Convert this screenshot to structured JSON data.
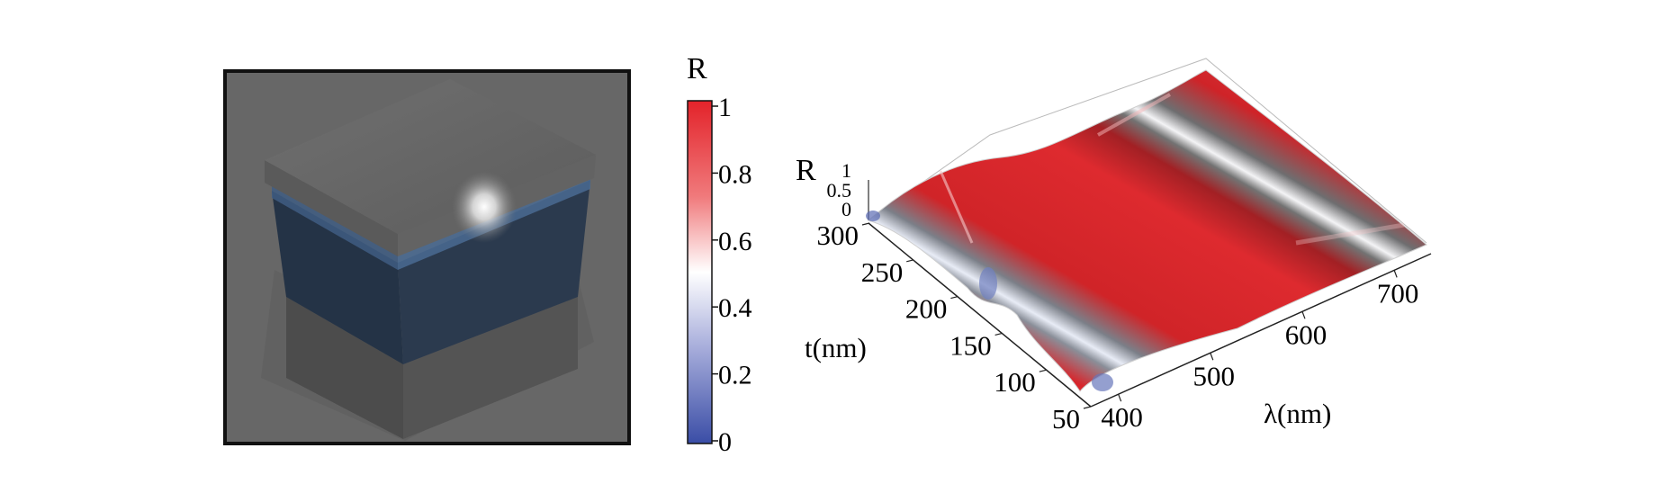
{
  "colorbar": {
    "title": "R",
    "ticks": [
      "1",
      "0.8",
      "0.6",
      "0.4",
      "0.2",
      "0"
    ],
    "colors": {
      "high": "#e8262b",
      "mid": "#ffffff",
      "low": "#3c4fa6"
    }
  },
  "plot3d": {
    "z_label": "R",
    "z_ticks": [
      "1",
      "0.5",
      "0"
    ],
    "t_label": "t(nm)",
    "t_ticks": [
      "300",
      "250",
      "200",
      "150",
      "100",
      "50"
    ],
    "lambda_label": "λ(nm)",
    "lambda_ticks": [
      "400",
      "500",
      "600",
      "700"
    ]
  },
  "chart_data": {
    "type": "surface",
    "x_name": "λ(nm)",
    "y_name": "t(nm)",
    "z_name": "R",
    "x_range": [
      370,
      740
    ],
    "y_range": [
      50,
      300
    ],
    "z_range": [
      0,
      1
    ],
    "x_ticks": [
      400,
      500,
      600,
      700
    ],
    "y_ticks": [
      50,
      100,
      150,
      200,
      250,
      300
    ],
    "z_ticks": [
      0,
      0.5,
      1
    ],
    "colormap": "blue-white-red",
    "notes_visible": "low-reflectance (white/blue) valleys run diagonally; high reflectance (red) elsewhere"
  }
}
